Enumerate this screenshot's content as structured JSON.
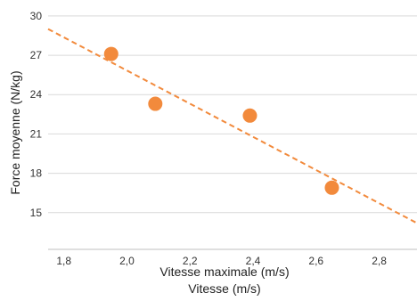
{
  "chart_data": {
    "type": "scatter",
    "xlabel": "Vitesse maximale (m/s)",
    "xlabel2": "Vitesse (m/s)",
    "ylabel": "Force moyenne (N/kg)",
    "xlim": [
      1.75,
      2.92
    ],
    "ylim": [
      12.2,
      30.4
    ],
    "x_ticks": [
      {
        "value": 1.8,
        "label": "1,8"
      },
      {
        "value": 2.0,
        "label": "2,0"
      },
      {
        "value": 2.2,
        "label": "2,2"
      },
      {
        "value": 2.4,
        "label": "2,4"
      },
      {
        "value": 2.6,
        "label": "2,6"
      },
      {
        "value": 2.8,
        "label": "2,8"
      }
    ],
    "y_ticks": [
      {
        "value": 15,
        "label": "15"
      },
      {
        "value": 18,
        "label": "18"
      },
      {
        "value": 21,
        "label": "21"
      },
      {
        "value": 24,
        "label": "24"
      },
      {
        "value": 27,
        "label": "27"
      },
      {
        "value": 30,
        "label": "30"
      }
    ],
    "points": [
      {
        "x": 1.95,
        "y": 27.1
      },
      {
        "x": 2.09,
        "y": 23.3
      },
      {
        "x": 2.39,
        "y": 22.4
      },
      {
        "x": 2.65,
        "y": 16.9
      }
    ],
    "trendline": {
      "x": [
        1.75,
        2.92
      ],
      "y": [
        29.0,
        14.2
      ],
      "style": "dashed"
    },
    "grid": "horizontal",
    "colors": {
      "points": "#f28a3c",
      "trendline": "#f28a3c",
      "grid": "#d9d9d9",
      "axis": "#bfbfbf"
    }
  }
}
